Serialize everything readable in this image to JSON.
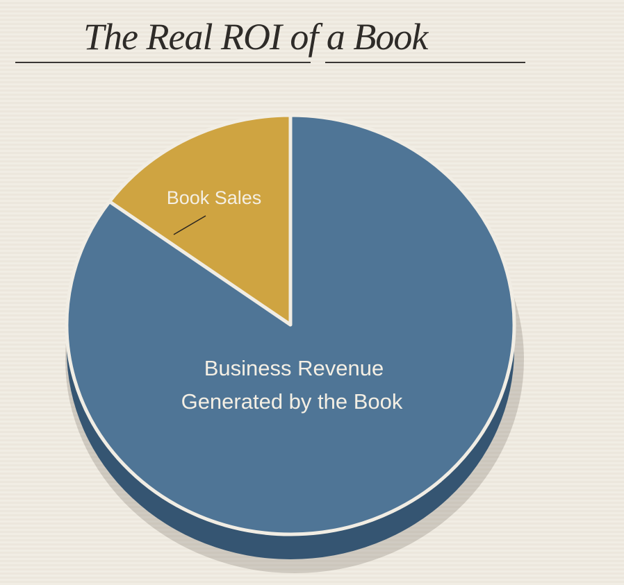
{
  "chart_data": {
    "type": "pie",
    "title": "The Real ROI of a Book",
    "start": "top",
    "direction": "counterclockwise",
    "slices": [
      {
        "label": "Book Sales",
        "value": 15,
        "color": "#cfa441"
      },
      {
        "label": "Business Revenue Generated by the Book",
        "label_lines": [
          "Business Revenue",
          "Generated by the Book"
        ],
        "value": 85,
        "color": "#4f7596"
      }
    ],
    "style": "3d",
    "separator_color": "#f1ede4",
    "side_color": "#355572"
  }
}
